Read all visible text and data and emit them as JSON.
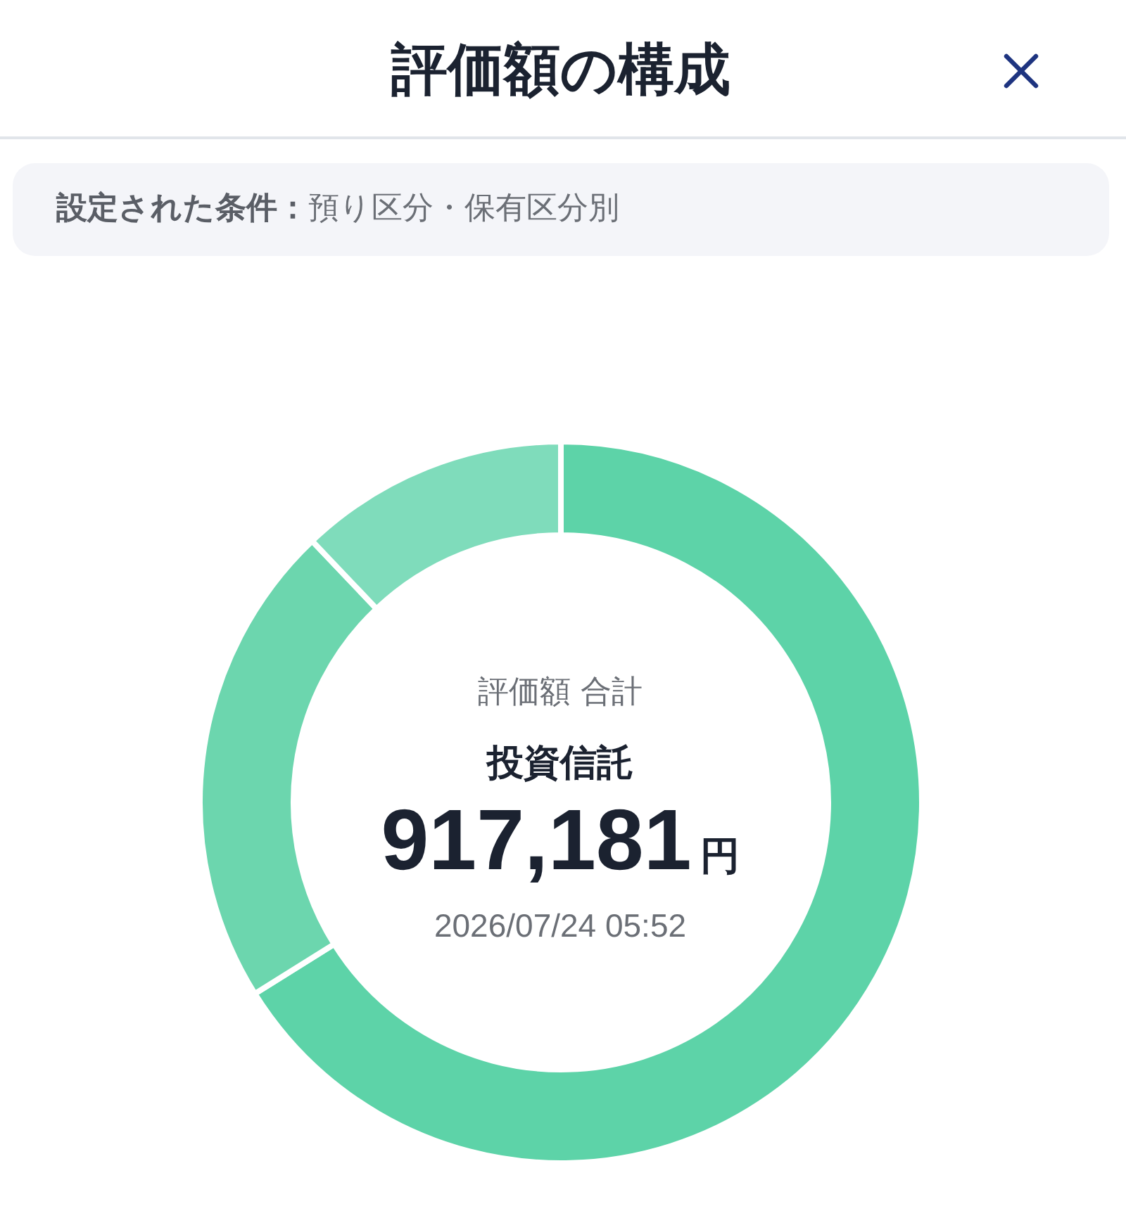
{
  "chart_data": {
    "type": "donut",
    "title": "評価額の構成",
    "subtitle": "設定された条件：預り区分・保有区分別",
    "categories": [
      null,
      null,
      null
    ],
    "values": [
      66.1,
      21.8,
      12.1
    ],
    "colors": [
      "#5dd3a8",
      "#6cd6ae",
      "#7fdcbb"
    ],
    "annotations": [
      "評価額 合計",
      "投資信託",
      "917,181",
      "円",
      "2026/07/24 05:52"
    ]
  }
}
